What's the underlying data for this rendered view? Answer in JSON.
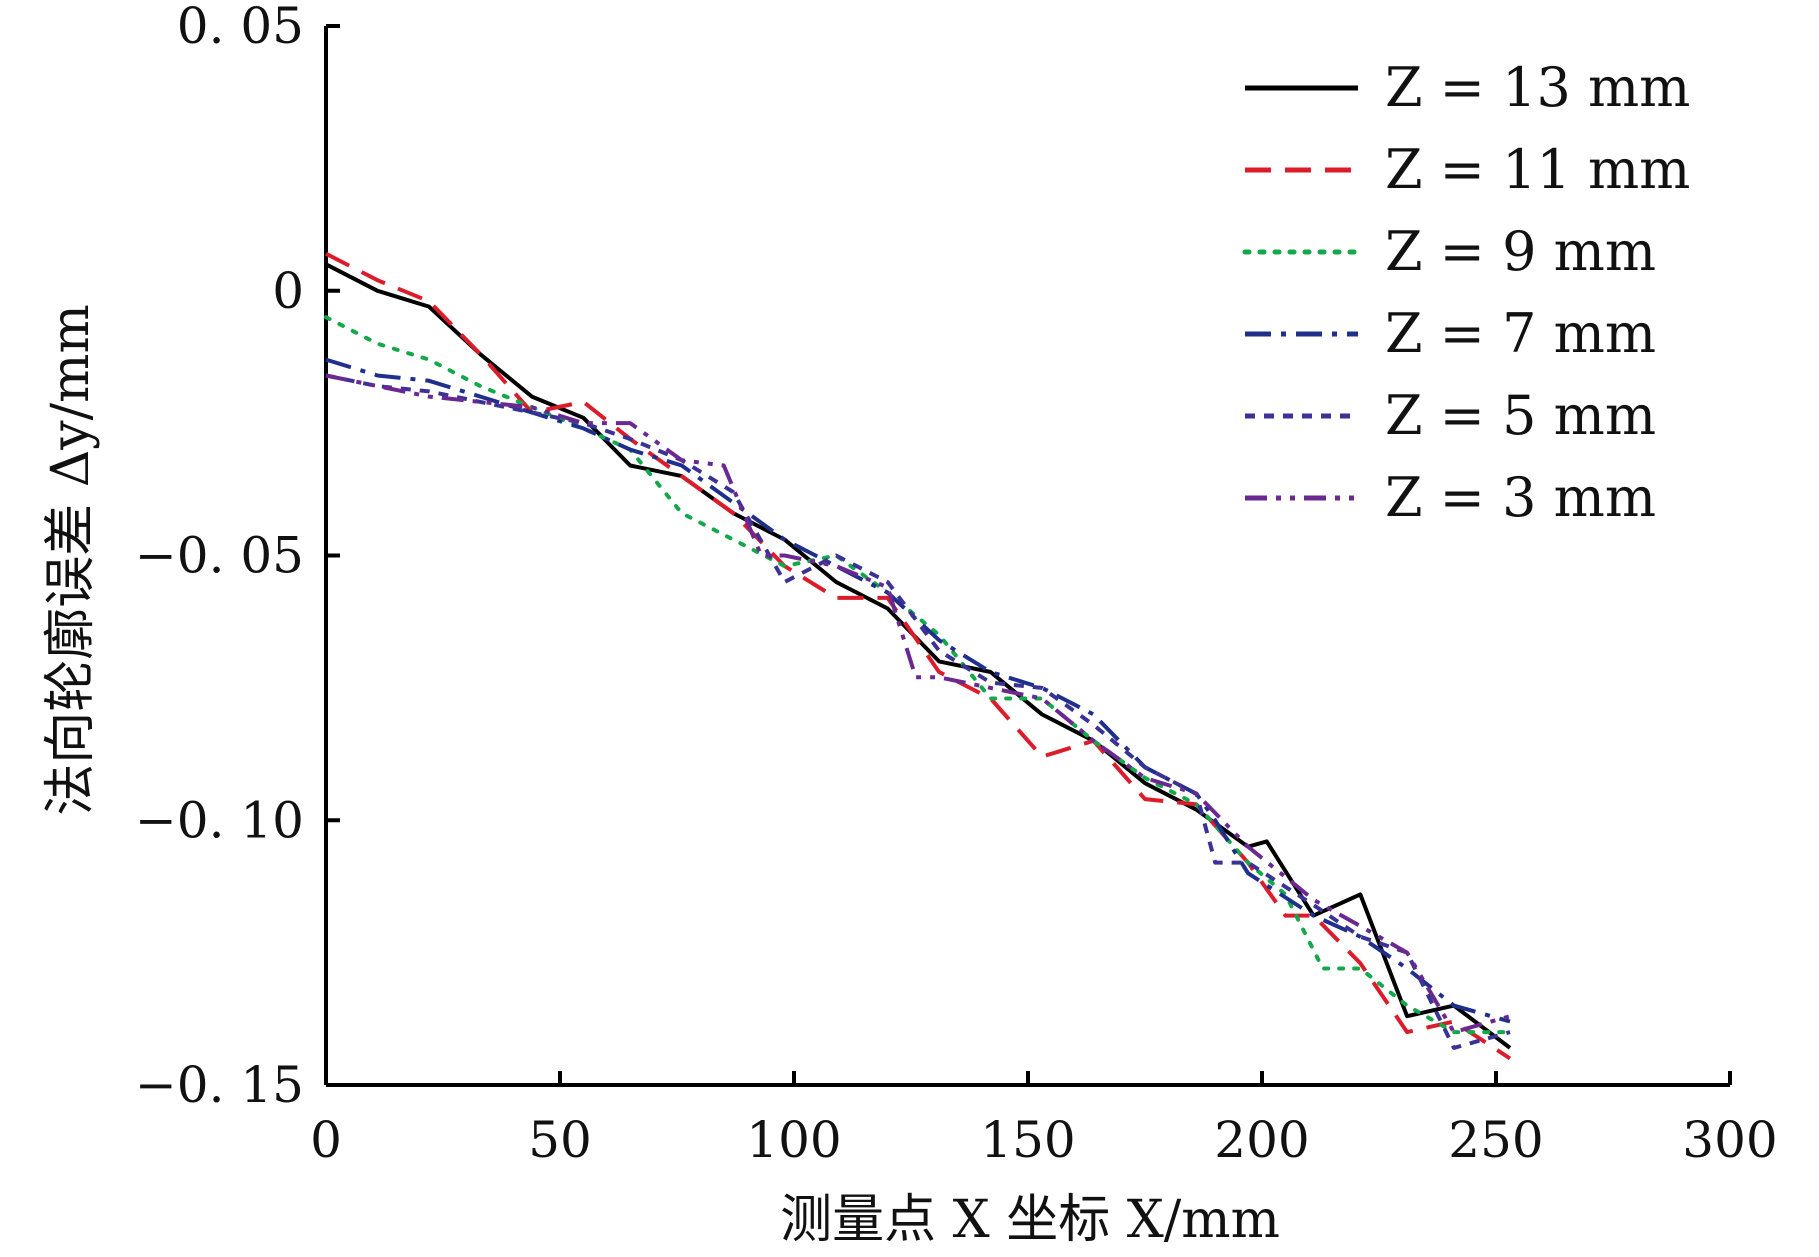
{
  "chart_data": {
    "type": "line",
    "title": "",
    "xlabel": "测量点 X 坐标 X/mm",
    "ylabel": "法向轮廓误差 Δy/mm",
    "xlim": [
      0,
      300
    ],
    "ylim": [
      -0.15,
      0.05
    ],
    "x_ticks": [
      0,
      50,
      100,
      150,
      200,
      250,
      300
    ],
    "x_tick_labels": [
      "0",
      "50",
      "100",
      "150",
      "200",
      "250",
      "300"
    ],
    "y_ticks": [
      0.05,
      0,
      -0.05,
      -0.1,
      -0.15
    ],
    "y_tick_labels": [
      "0. 05",
      "0",
      "−0. 05",
      "−0. 10",
      "−0. 15"
    ],
    "grid": false,
    "legend_position": "top-right",
    "series": [
      {
        "name": "Z = 13 mm",
        "color": "#000000",
        "dash": "solid",
        "x": [
          0,
          11,
          22,
          33,
          44,
          55,
          65,
          76,
          87,
          98,
          109,
          120,
          131,
          142,
          153,
          164,
          175,
          186,
          197,
          201,
          211,
          221,
          231,
          241,
          253
        ],
        "y": [
          0.005,
          0.0,
          -0.003,
          -0.012,
          -0.02,
          -0.024,
          -0.033,
          -0.035,
          -0.042,
          -0.047,
          -0.055,
          -0.06,
          -0.07,
          -0.072,
          -0.08,
          -0.085,
          -0.093,
          -0.098,
          -0.105,
          -0.104,
          -0.118,
          -0.114,
          -0.137,
          -0.135,
          -0.143
        ]
      },
      {
        "name": "Z = 11 mm",
        "color": "#dd1c2b",
        "dash": "dashed",
        "x": [
          0,
          11,
          22,
          33,
          44,
          55,
          65,
          76,
          87,
          98,
          109,
          120,
          131,
          142,
          153,
          164,
          175,
          186,
          197,
          205,
          211,
          221,
          231,
          241,
          253
        ],
        "y": [
          0.007,
          0.002,
          -0.002,
          -0.012,
          -0.023,
          -0.021,
          -0.028,
          -0.035,
          -0.042,
          -0.052,
          -0.058,
          -0.058,
          -0.072,
          -0.077,
          -0.088,
          -0.085,
          -0.096,
          -0.097,
          -0.108,
          -0.118,
          -0.118,
          -0.127,
          -0.14,
          -0.138,
          -0.145
        ]
      },
      {
        "name": "Z = 9 mm",
        "color": "#13a84a",
        "dash": "dotted",
        "x": [
          0,
          11,
          22,
          33,
          44,
          55,
          65,
          76,
          87,
          98,
          109,
          120,
          131,
          142,
          153,
          164,
          175,
          186,
          197,
          205,
          213,
          221,
          231,
          241,
          253
        ],
        "y": [
          -0.005,
          -0.01,
          -0.013,
          -0.018,
          -0.022,
          -0.026,
          -0.03,
          -0.042,
          -0.047,
          -0.052,
          -0.05,
          -0.057,
          -0.065,
          -0.077,
          -0.077,
          -0.085,
          -0.092,
          -0.097,
          -0.108,
          -0.114,
          -0.128,
          -0.128,
          -0.135,
          -0.14,
          -0.14
        ]
      },
      {
        "name": "Z = 7 mm",
        "color": "#1f2f8c",
        "dash": "dashdot",
        "x": [
          0,
          11,
          22,
          33,
          44,
          55,
          65,
          76,
          87,
          98,
          109,
          120,
          131,
          142,
          153,
          164,
          175,
          186,
          190,
          197,
          211,
          221,
          231,
          241,
          253
        ],
        "y": [
          -0.013,
          -0.016,
          -0.017,
          -0.02,
          -0.023,
          -0.026,
          -0.03,
          -0.033,
          -0.04,
          -0.047,
          -0.052,
          -0.057,
          -0.066,
          -0.072,
          -0.075,
          -0.08,
          -0.09,
          -0.095,
          -0.1,
          -0.11,
          -0.118,
          -0.122,
          -0.128,
          -0.135,
          -0.138
        ]
      },
      {
        "name": "Z = 5 mm",
        "color": "#3a3294",
        "dash": "shortdash",
        "x": [
          0,
          11,
          22,
          33,
          44,
          55,
          65,
          76,
          87,
          98,
          109,
          120,
          131,
          142,
          153,
          164,
          175,
          186,
          190,
          197,
          211,
          221,
          231,
          241,
          253
        ],
        "y": [
          -0.016,
          -0.018,
          -0.019,
          -0.021,
          -0.023,
          -0.025,
          -0.028,
          -0.032,
          -0.038,
          -0.055,
          -0.05,
          -0.055,
          -0.068,
          -0.074,
          -0.075,
          -0.082,
          -0.09,
          -0.095,
          -0.108,
          -0.108,
          -0.116,
          -0.122,
          -0.125,
          -0.143,
          -0.14
        ]
      },
      {
        "name": "Z = 3 mm",
        "color": "#6b2891",
        "dash": "dashdotdot",
        "x": [
          0,
          11,
          22,
          33,
          44,
          55,
          65,
          76,
          85,
          93,
          98,
          109,
          120,
          126,
          131,
          142,
          153,
          164,
          175,
          186,
          197,
          211,
          221,
          231,
          241,
          253
        ],
        "y": [
          -0.016,
          -0.018,
          -0.02,
          -0.021,
          -0.022,
          -0.025,
          -0.025,
          -0.032,
          -0.033,
          -0.05,
          -0.05,
          -0.052,
          -0.056,
          -0.073,
          -0.073,
          -0.075,
          -0.077,
          -0.085,
          -0.092,
          -0.095,
          -0.105,
          -0.115,
          -0.12,
          -0.125,
          -0.14,
          -0.137
        ]
      }
    ]
  }
}
